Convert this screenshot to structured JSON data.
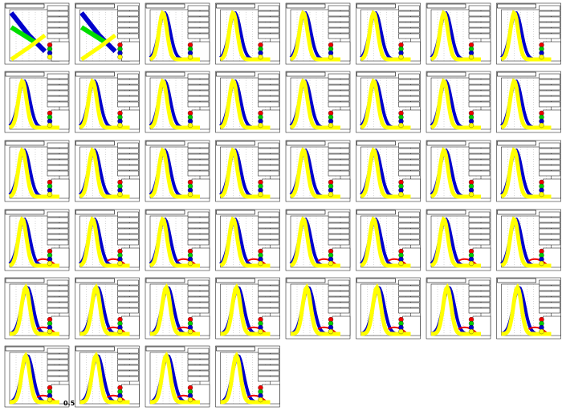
{
  "axis_label": "0.5"
}
